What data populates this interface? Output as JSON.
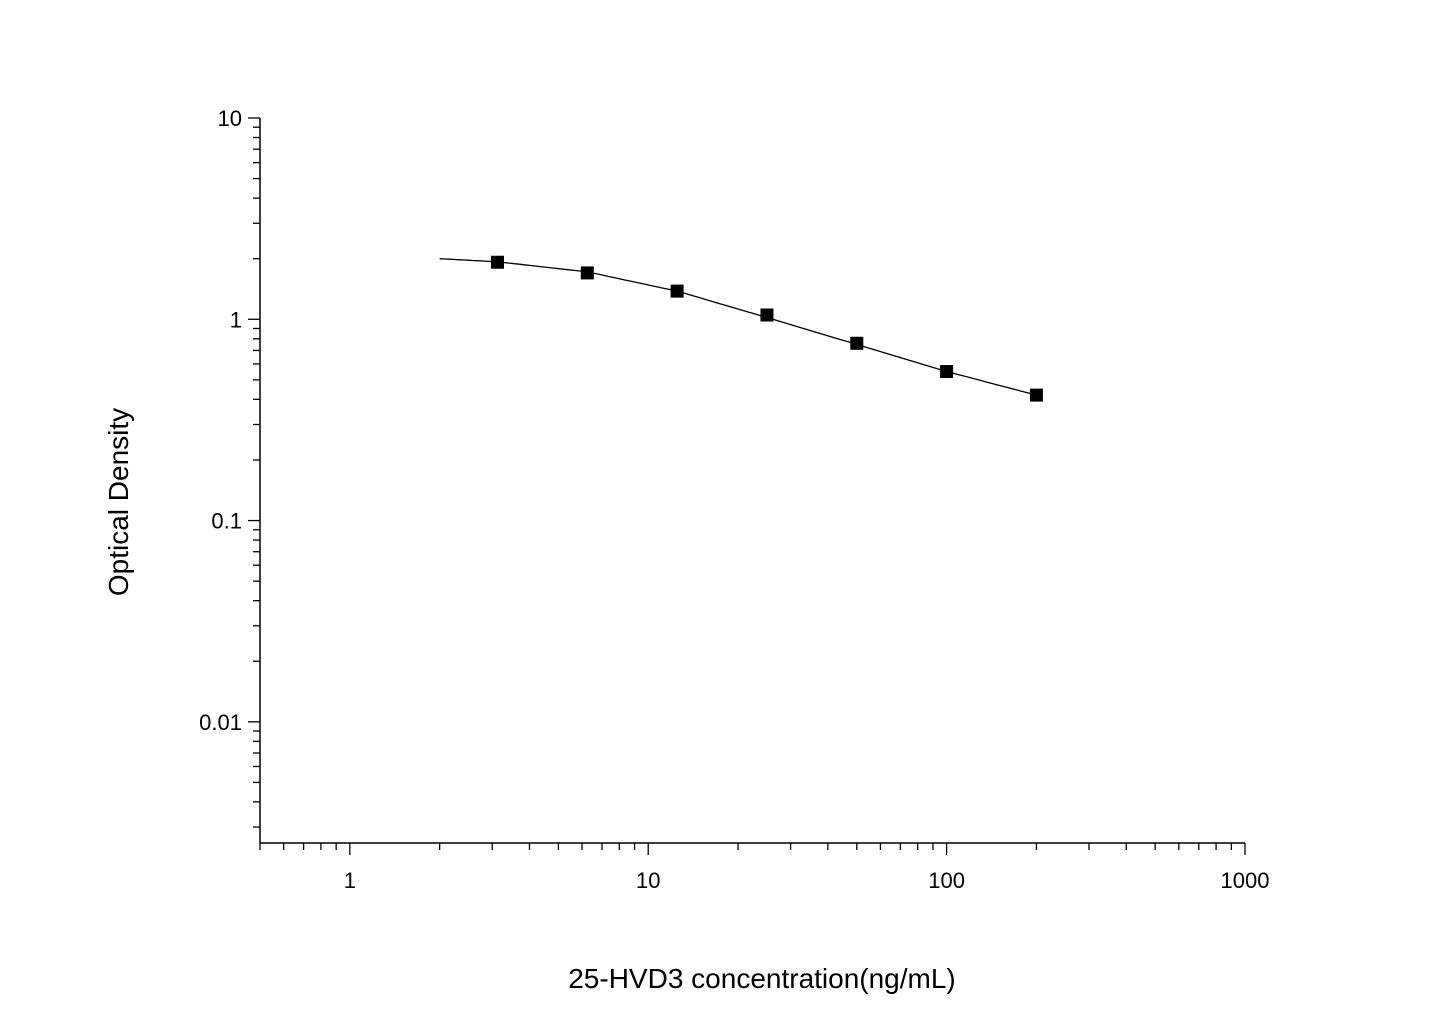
{
  "chart_data": {
    "type": "scatter",
    "title": "",
    "xlabel": "25-HVD3 concentration(ng/mL)",
    "ylabel": "Optical Density",
    "xscale": "log",
    "yscale": "log",
    "xlim": [
      0.5,
      1000
    ],
    "ylim": [
      0.0025,
      10
    ],
    "grid": false,
    "xticks": [
      {
        "value": 1,
        "label": "1"
      },
      {
        "value": 10,
        "label": "10"
      },
      {
        "value": 100,
        "label": "100"
      },
      {
        "value": 1000,
        "label": "1000"
      }
    ],
    "yticks": [
      {
        "value": 10,
        "label": "10"
      },
      {
        "value": 1,
        "label": "1"
      },
      {
        "value": 0.1,
        "label": "0.1"
      },
      {
        "value": 0.01,
        "label": "0.01"
      }
    ],
    "series": [
      {
        "marker": "square",
        "color": "#000000",
        "x": [
          3.125,
          6.25,
          12.5,
          25,
          50,
          100,
          200
        ],
        "y": [
          1.92,
          1.7,
          1.38,
          1.05,
          0.76,
          0.55,
          0.42
        ]
      }
    ],
    "fit_curve": {
      "color": "#000000",
      "x_range": [
        2,
        200
      ],
      "points": [
        [
          2,
          2.0
        ],
        [
          3.125,
          1.93
        ],
        [
          6.25,
          1.72
        ],
        [
          12.5,
          1.38
        ],
        [
          25,
          1.02
        ],
        [
          50,
          0.75
        ],
        [
          100,
          0.55
        ],
        [
          200,
          0.42
        ]
      ]
    }
  }
}
